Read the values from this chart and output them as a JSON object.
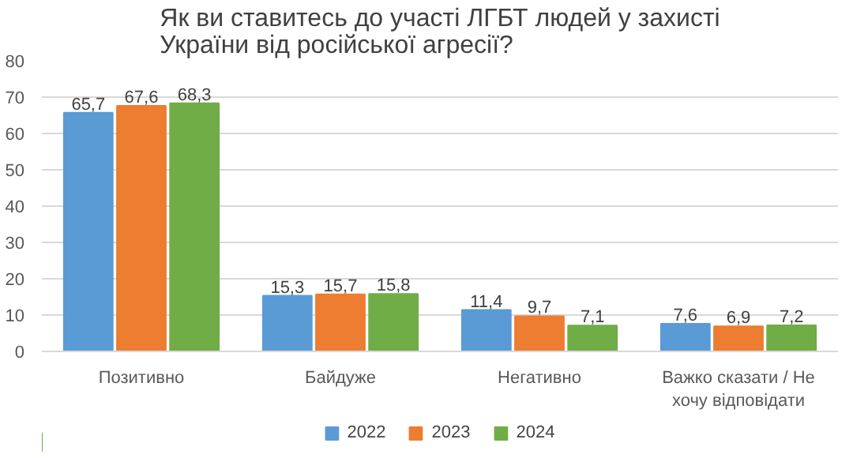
{
  "chart_data": {
    "type": "bar",
    "title": "Як ви ставитесь до участі ЛГБТ людей у захисті України від російської агресії?",
    "categories": [
      "Позитивно",
      "Байдуже",
      "Негативно",
      "Важко сказати / Не хочу відповідати"
    ],
    "series": [
      {
        "name": "2022",
        "color": "#5b9bd5",
        "values": [
          65.7,
          15.3,
          11.4,
          7.6
        ],
        "value_labels": [
          "65,7",
          "15,3",
          "11,4",
          "7,6"
        ]
      },
      {
        "name": "2023",
        "color": "#ed7d31",
        "values": [
          67.6,
          15.7,
          9.7,
          6.9
        ],
        "value_labels": [
          "67,6",
          "15,7",
          "9,7",
          "6,9"
        ]
      },
      {
        "name": "2024",
        "color": "#70ad47",
        "values": [
          68.3,
          15.8,
          7.1,
          7.2
        ],
        "value_labels": [
          "68,3",
          "15,8",
          "7,1",
          "7,2"
        ]
      }
    ],
    "ylim": [
      0,
      80
    ],
    "yticks": [
      0,
      10,
      20,
      30,
      40,
      50,
      60,
      70,
      80
    ],
    "grid": "y",
    "legend": "bottom"
  }
}
